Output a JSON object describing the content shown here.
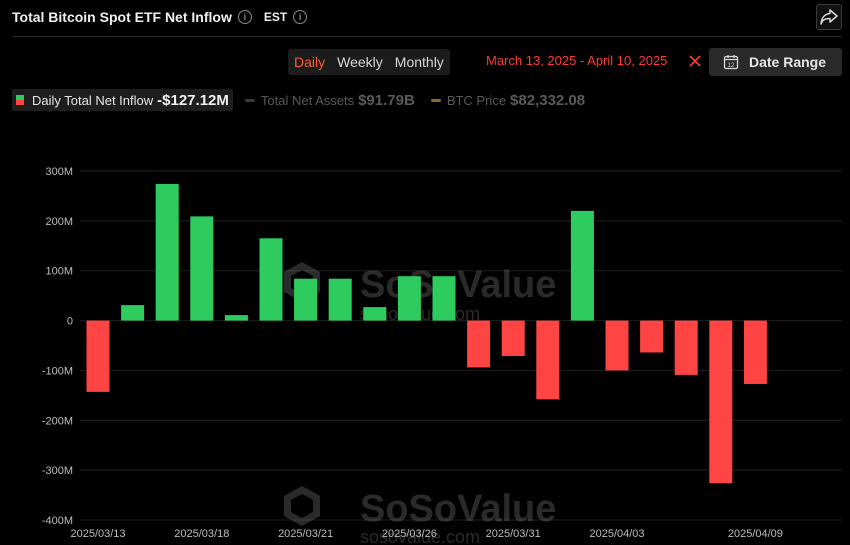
{
  "header": {
    "title": "Total Bitcoin Spot ETF Net Inflow",
    "timezone": "EST"
  },
  "controls": {
    "periods": [
      {
        "label": "Daily",
        "active": true
      },
      {
        "label": "Weekly",
        "active": false
      },
      {
        "label": "Monthly",
        "active": false
      }
    ],
    "date_range_text": "March 13, 2025 - April 10, 2025",
    "date_range_button": "Date Range"
  },
  "legend": [
    {
      "label": "Daily Total Net Inflow",
      "value": "-$127.12M",
      "active": true
    },
    {
      "label": "Total Net Assets",
      "value": "$91.79B",
      "active": false
    },
    {
      "label": "BTC Price",
      "value": "$82,332.08",
      "active": false
    }
  ],
  "watermark": {
    "brand": "SoSoValue",
    "url": "sosovalue.com"
  },
  "colors": {
    "positive": "#2ecc5e",
    "negative": "#ff4444",
    "accent": "#ff5a36",
    "btc_line": "#8a6a2a",
    "assets_line": "#3a3a3a"
  },
  "chart_data": {
    "type": "bar",
    "title": "Total Bitcoin Spot ETF Net Inflow",
    "unit": "USD",
    "ylim": [
      -400,
      300
    ],
    "yticks": [
      300,
      200,
      100,
      0,
      -100,
      -200,
      -300,
      -400
    ],
    "ytick_labels": [
      "300M",
      "200M",
      "100M",
      "0",
      "-100M",
      "-200M",
      "-300M",
      "-400M"
    ],
    "xtick_labels": [
      {
        "index": 0,
        "label": "2025/03/13"
      },
      {
        "index": 3,
        "label": "2025/03/18"
      },
      {
        "index": 6,
        "label": "2025/03/21"
      },
      {
        "index": 9,
        "label": "2025/03/26"
      },
      {
        "index": 12,
        "label": "2025/03/31"
      },
      {
        "index": 15,
        "label": "2025/04/03"
      },
      {
        "index": 19,
        "label": "2025/04/09"
      }
    ],
    "values": [
      -143,
      31,
      274,
      209,
      11,
      165,
      84,
      84,
      27,
      89,
      89,
      -94,
      -71,
      -158,
      220,
      -100,
      -64,
      -109,
      -326,
      -127.12
    ],
    "grid": true
  }
}
